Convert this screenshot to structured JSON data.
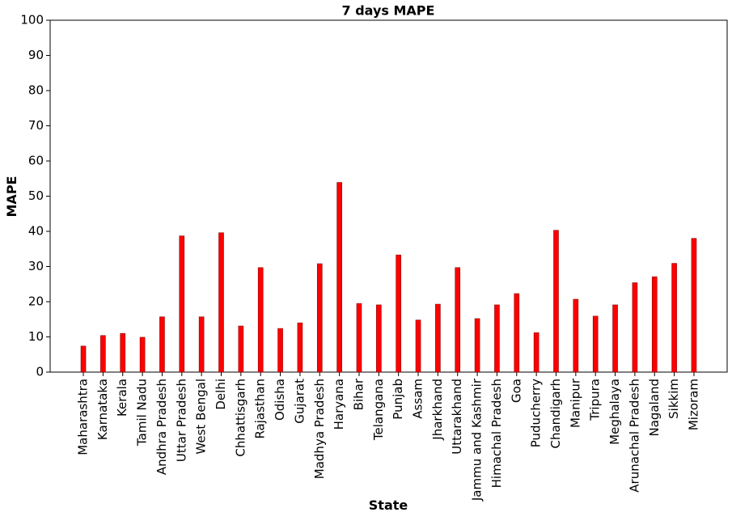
{
  "chart_data": {
    "type": "bar",
    "title": "7 days MAPE",
    "x_label": "State",
    "y_label": "MAPE",
    "categories": [
      "Maharashtra",
      "Karnataka",
      "Kerala",
      "Tamil Nadu",
      "Andhra Pradesh",
      "Uttar Pradesh",
      "West Bengal",
      "Delhi",
      "Chhattisgarh",
      "Rajasthan",
      "Odisha",
      "Gujarat",
      "Madhya Pradesh",
      "Haryana",
      "Bihar",
      "Telangana",
      "Punjab",
      "Assam",
      "Jharkhand",
      "Uttarakhand",
      "Jammu and Kashmir",
      "Himachal Pradesh",
      "Goa",
      "Puducherry",
      "Chandigarh",
      "Manipur",
      "Tripura",
      "Meghalaya",
      "Arunachal Pradesh",
      "Nagaland",
      "Sikkim",
      "Mizoram"
    ],
    "values": [
      7.4,
      10.4,
      11,
      9.9,
      15.7,
      38.7,
      15.7,
      39.6,
      13.1,
      29.7,
      12.4,
      14,
      30.8,
      53.9,
      19.5,
      19.1,
      33.3,
      14.8,
      19.3,
      29.7,
      15.2,
      19.1,
      22.3,
      11.2,
      40.3,
      20.7,
      15.9,
      19.1,
      25.4,
      27.1,
      30.9,
      38
    ],
    "color": "#ff0000",
    "ylim": [
      0,
      100
    ],
    "yticks": [
      0,
      10,
      20,
      30,
      40,
      50,
      60,
      70,
      80,
      90,
      100
    ],
    "grid": false
  }
}
